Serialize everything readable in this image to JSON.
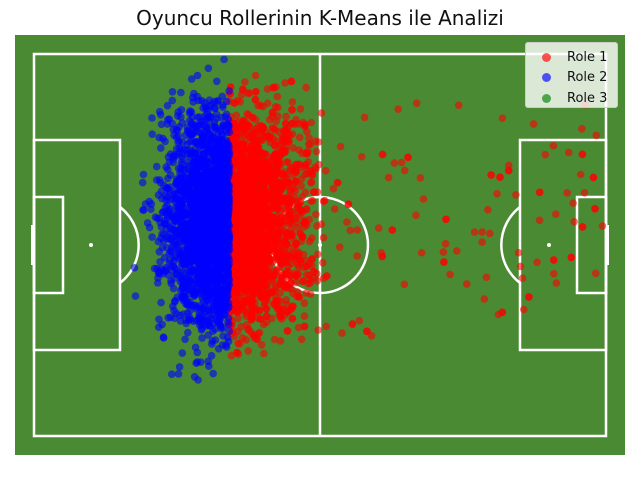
{
  "chart_data": {
    "type": "scatter",
    "title": "Oyuncu Rollerinin K-Means ile Analizi",
    "xlabel": "",
    "ylabel": "",
    "xlim": [
      0,
      120
    ],
    "ylim": [
      0,
      80
    ],
    "grid": false,
    "background": "pitch",
    "legend_position": "top-right",
    "colors": {
      "pitch": "#4a8a32",
      "lines": "#ffffff"
    },
    "series": [
      {
        "name": "Role 1",
        "color": "#ff0000",
        "x_range": [
          41,
          120
        ],
        "y_range": [
          0,
          70
        ],
        "approx_points": 4500
      },
      {
        "name": "Role 2",
        "color": "#0000ff",
        "x_range": [
          0,
          41
        ],
        "y_range": [
          0,
          70
        ],
        "approx_points": 4500
      },
      {
        "name": "Role 3",
        "color": "#008000",
        "x_range": [],
        "y_range": [],
        "approx_points": 0
      }
    ]
  }
}
